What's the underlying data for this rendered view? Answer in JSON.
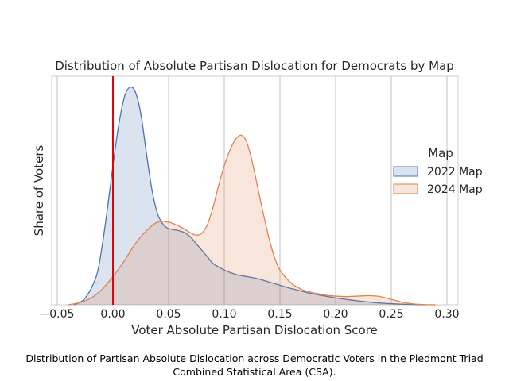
{
  "chart_data": {
    "type": "area",
    "title": "Distribution of Absolute Partisan Dislocation for Democrats by Map",
    "xlabel": "Voter Absolute Partisan Dislocation Score",
    "ylabel": "Share of Voters",
    "xlim": [
      -0.055,
      0.31
    ],
    "ylim": [
      0,
      1.0
    ],
    "x_ticks": [
      "−0.05",
      "0.00",
      "0.05",
      "0.10",
      "0.15",
      "0.20",
      "0.25",
      "0.30"
    ],
    "x_tick_values": [
      -0.05,
      0.0,
      0.05,
      0.1,
      0.15,
      0.2,
      0.25,
      0.3
    ],
    "grid": "vertical",
    "reference_line": {
      "x": 0.0,
      "color": "#e8000b"
    },
    "legend": {
      "title": "Map",
      "placement": "right"
    },
    "series": [
      {
        "name": "2022 Map",
        "line_color": "#4c72b0",
        "fill_color": "#4c72b0",
        "x": [
          -0.035,
          -0.025,
          -0.015,
          -0.01,
          -0.005,
          0.0,
          0.005,
          0.01,
          0.015,
          0.02,
          0.025,
          0.03,
          0.035,
          0.04,
          0.045,
          0.05,
          0.055,
          0.06,
          0.065,
          0.07,
          0.075,
          0.08,
          0.085,
          0.09,
          0.1,
          0.11,
          0.12,
          0.13,
          0.14,
          0.15,
          0.16,
          0.18,
          0.2,
          0.22,
          0.24,
          0.26,
          0.28
        ],
        "y": [
          0.0,
          0.03,
          0.13,
          0.26,
          0.44,
          0.64,
          0.82,
          0.95,
          1.0,
          0.98,
          0.88,
          0.7,
          0.53,
          0.42,
          0.37,
          0.35,
          0.345,
          0.34,
          0.33,
          0.31,
          0.28,
          0.25,
          0.22,
          0.19,
          0.16,
          0.14,
          0.13,
          0.12,
          0.105,
          0.09,
          0.075,
          0.05,
          0.032,
          0.018,
          0.008,
          0.003,
          0.0
        ]
      },
      {
        "name": "2024 Map",
        "line_color": "#dd8452",
        "fill_color": "#dd8452",
        "x": [
          -0.04,
          -0.03,
          -0.02,
          -0.01,
          0.0,
          0.01,
          0.02,
          0.03,
          0.04,
          0.05,
          0.06,
          0.07,
          0.075,
          0.08,
          0.085,
          0.09,
          0.095,
          0.1,
          0.105,
          0.11,
          0.115,
          0.12,
          0.125,
          0.13,
          0.135,
          0.14,
          0.145,
          0.15,
          0.16,
          0.17,
          0.18,
          0.19,
          0.2,
          0.21,
          0.22,
          0.23,
          0.24,
          0.25,
          0.26,
          0.27,
          0.28,
          0.29
        ],
        "y": [
          0.0,
          0.01,
          0.03,
          0.07,
          0.13,
          0.2,
          0.28,
          0.34,
          0.38,
          0.38,
          0.36,
          0.33,
          0.32,
          0.33,
          0.37,
          0.45,
          0.55,
          0.64,
          0.71,
          0.76,
          0.78,
          0.75,
          0.66,
          0.54,
          0.42,
          0.31,
          0.22,
          0.16,
          0.1,
          0.07,
          0.055,
          0.045,
          0.04,
          0.038,
          0.04,
          0.042,
          0.038,
          0.025,
          0.012,
          0.004,
          0.001,
          0.0
        ]
      }
    ],
    "caption": "Distribution of Partisan Absolute Dislocation across Democratic Voters in the Piedmont Triad Combined Statistical Area (CSA)."
  }
}
